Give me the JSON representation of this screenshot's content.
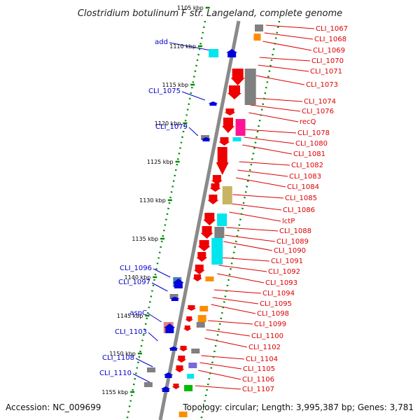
{
  "title": "Clostridium botulinum F str. Langeland, complete genome",
  "footer": {
    "accession": "Accession: NC_009699",
    "stats": "Topology: circular; Length: 3,995,387 bp; Genes: 3,781"
  },
  "colors": {
    "red": "#ee0000",
    "blue": "#0000dd",
    "cyan": "#00e5ee",
    "gray": "#808080",
    "magenta": "#ff1493",
    "olive": "#c8b464",
    "orange": "#ff8c00",
    "green": "#00bb00",
    "purple": "#7a68d8",
    "steel": "#4682b4",
    "pink": "#e88080",
    "tick_green": "#008800",
    "backbone": "#8a8a8a",
    "left_label": "#0000cc",
    "right_label": "#dd0000"
  },
  "kbp_ticks": [
    "1105 kbp",
    "1110 kbp",
    "1115 kbp",
    "1120 kbp",
    "1125 kbp",
    "1130 kbp",
    "1135 kbp",
    "1140 kbp",
    "1145 kbp",
    "1150 kbp",
    "1155 kbp"
  ],
  "right_labels": [
    "CLI_1067",
    "CLI_1068",
    "CLI_1069",
    "CLI_1070",
    "CLI_1071",
    "CLI_1073",
    "CLI_1074",
    "CLI_1076",
    "recQ",
    "CLI_1078",
    "CLI_1080",
    "CLI_1081",
    "CLI_1082",
    "CLI_1083",
    "CLI_1084",
    "CLI_1085",
    "CLI_1086",
    "lctP",
    "CLI_1088",
    "CLI_1089",
    "CLI_1090",
    "CLI_1091",
    "CLI_1092",
    "CLI_1093",
    "CLI_1094",
    "CLI_1095",
    "CLI_1098",
    "CLI_1099",
    "CLI_1100",
    "CLI_1102",
    "CLI_1104",
    "CLI_1105",
    "CLI_1106",
    "CLI_1107"
  ],
  "left_labels": [
    "add",
    "CLI_1075",
    "CLI_1079",
    "CLI_1096",
    "CLI_1097",
    "aspC",
    "CLI_1103",
    "CLI_1108",
    "CLI_1110"
  ]
}
